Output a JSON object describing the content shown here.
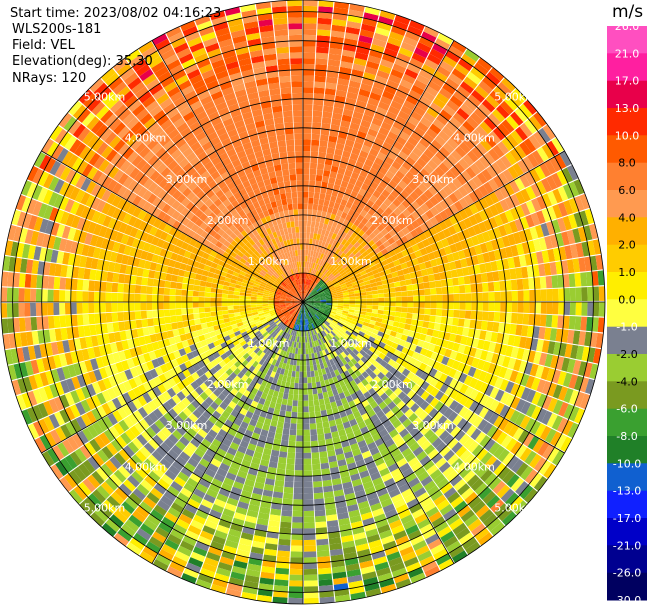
{
  "header": {
    "start_time": "Start time: 2023/08/02 04:16:23",
    "station": "WLS200s-181",
    "field": "Field: VEL",
    "elevation": "Elevation(deg): 35.30",
    "nrays": "NRays: 120"
  },
  "chart_data": {
    "type": "polar-ppi",
    "field": "VEL",
    "n_rays": 120,
    "range_rings": [
      {
        "label": "1.00km",
        "value": 1.0
      },
      {
        "label": "2.00km",
        "value": 2.0
      },
      {
        "label": "3.00km",
        "value": 3.0
      },
      {
        "label": "4.00km",
        "value": 4.0
      },
      {
        "label": "5.00km",
        "value": 5.0
      }
    ],
    "max_range_km": 5.2,
    "colorbar": {
      "unit": "m/s",
      "ticks": [
        "26.0",
        "21.0",
        "17.0",
        "13.0",
        "10.0",
        "8.0",
        "6.0",
        "4.0",
        "2.0",
        "1.0",
        "0.0",
        "-1.0",
        "-2.0",
        "-4.0",
        "-6.0",
        "-8.0",
        "-10.0",
        "-13.0",
        "-17.0",
        "-21.0",
        "-26.0",
        "-30.0"
      ],
      "colors": [
        "#ff4fc0",
        "#ff1fa0",
        "#e8004a",
        "#ff2a00",
        "#ff5a00",
        "#ff8030",
        "#ff9a50",
        "#ffb000",
        "#ffcc00",
        "#ffee00",
        "#ffff40",
        "#7a8090",
        "#9acd32",
        "#7a9a20",
        "#3aa030",
        "#208028",
        "#1060d0",
        "#1020ff",
        "#0000c8",
        "#000090",
        "#000060"
      ]
    }
  }
}
